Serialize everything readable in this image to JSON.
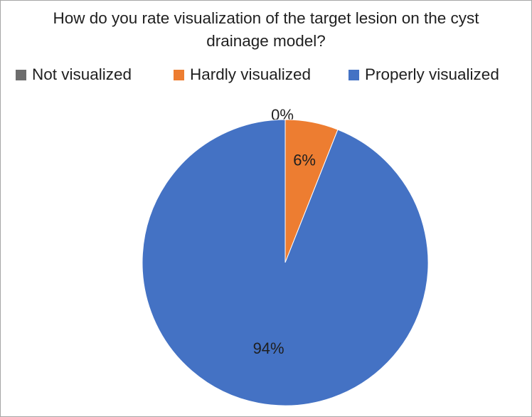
{
  "chart_data": {
    "type": "pie",
    "title_lines": [
      "How do you rate visualization of the target lesion on the cyst",
      "drainage model?"
    ],
    "legend_position": "top",
    "series": [
      {
        "name": "Not visualized",
        "value": 0,
        "label": "0%",
        "color": "#6d6d6d"
      },
      {
        "name": "Hardly visualized",
        "value": 6,
        "label": "6%",
        "color": "#ed7d31"
      },
      {
        "name": "Properly visualized",
        "value": 94,
        "label": "94%",
        "color": "#4472c4"
      }
    ]
  }
}
